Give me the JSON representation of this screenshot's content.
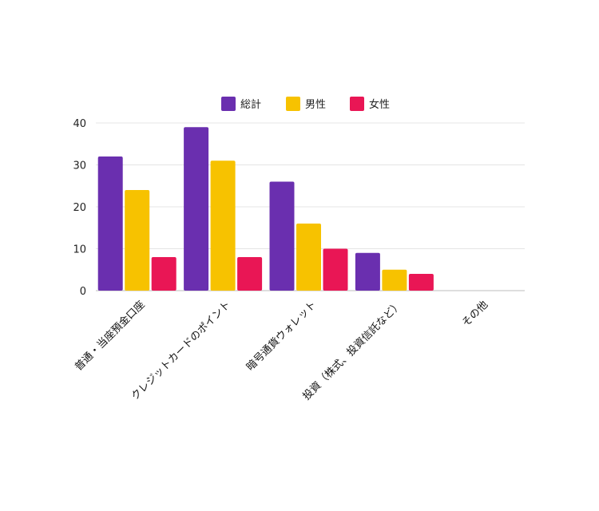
{
  "chart_data": {
    "type": "bar",
    "categories": [
      "普通・当座預金口座",
      "クレジットカードのポイント",
      "暗号通貨ウォレット",
      "投資（株式、投資信託など）",
      "その他"
    ],
    "series": [
      {
        "name": "総計",
        "values": [
          32,
          39,
          26,
          9,
          0
        ],
        "color": "#6a2faf"
      },
      {
        "name": "男性",
        "values": [
          24,
          31,
          16,
          5,
          0
        ],
        "color": "#f7c200"
      },
      {
        "name": "女性",
        "values": [
          8,
          8,
          10,
          4,
          0
        ],
        "color": "#e91655"
      }
    ],
    "y_ticks": [
      0,
      10,
      20,
      30,
      40
    ],
    "ylim": [
      0,
      40
    ],
    "grid": true,
    "legend_position": "top-center"
  }
}
